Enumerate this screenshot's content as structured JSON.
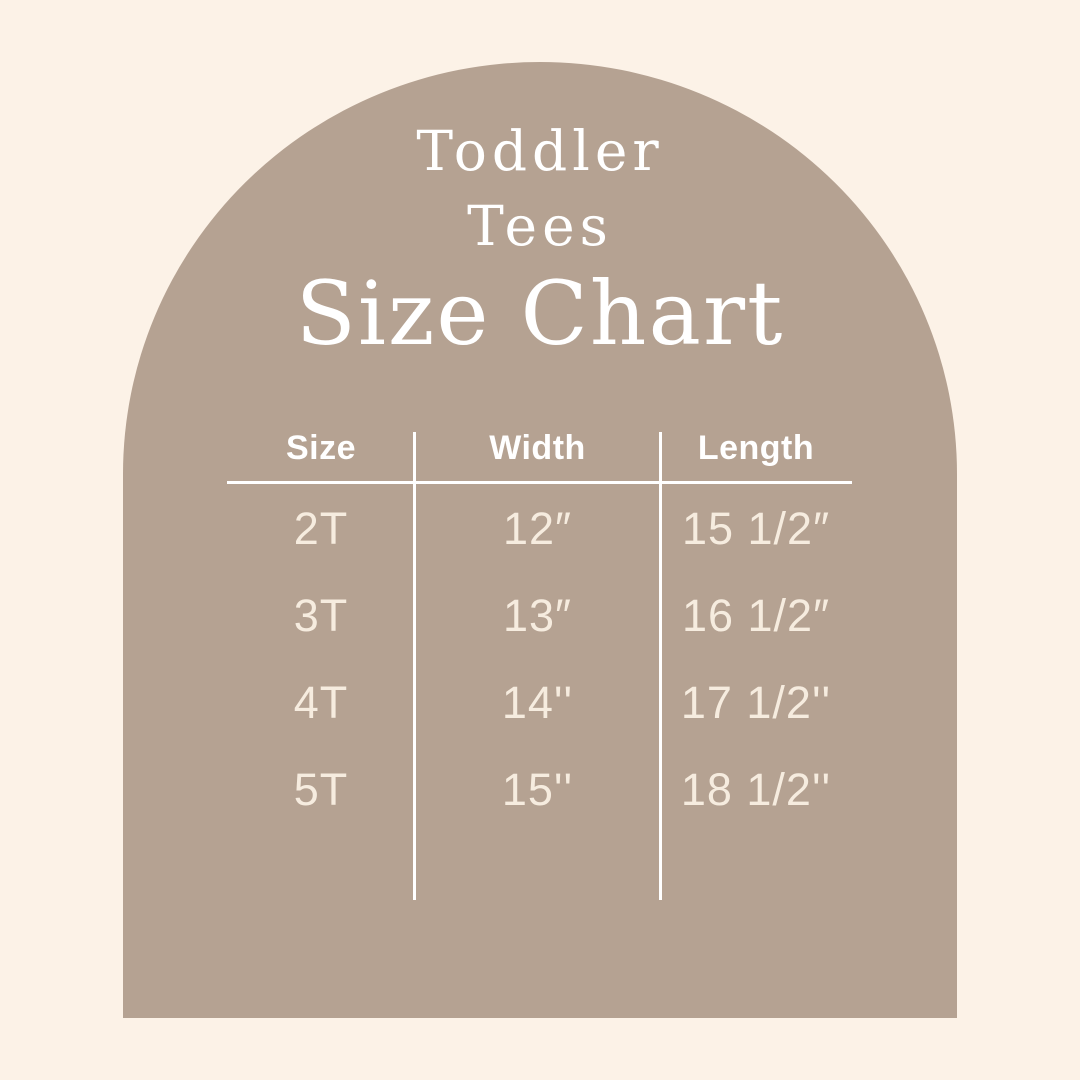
{
  "colors": {
    "background": "#fcf2e7",
    "arch": "#b5a292",
    "heading_text": "#ffffff",
    "value_text": "#f6ecdf",
    "rule": "#ffffff"
  },
  "title": {
    "line1": "Toddler",
    "line2": "Tees",
    "line3": "Size Chart"
  },
  "chart_data": {
    "type": "table",
    "title": "Size Chart",
    "subtitle": "Toddler Tees",
    "columns": [
      "Size",
      "Width",
      "Length"
    ],
    "rows": [
      [
        "2T",
        "12″",
        "15 1/2″"
      ],
      [
        "3T",
        "13″",
        "16 1/2″"
      ],
      [
        "4T",
        "14''",
        "17 1/2''"
      ],
      [
        "5T",
        "15''",
        "18 1/2''"
      ]
    ],
    "units": "inches",
    "layout_hints": {
      "shape": "arch",
      "grid": "vertical dividers between columns, horizontal rule under header"
    }
  }
}
